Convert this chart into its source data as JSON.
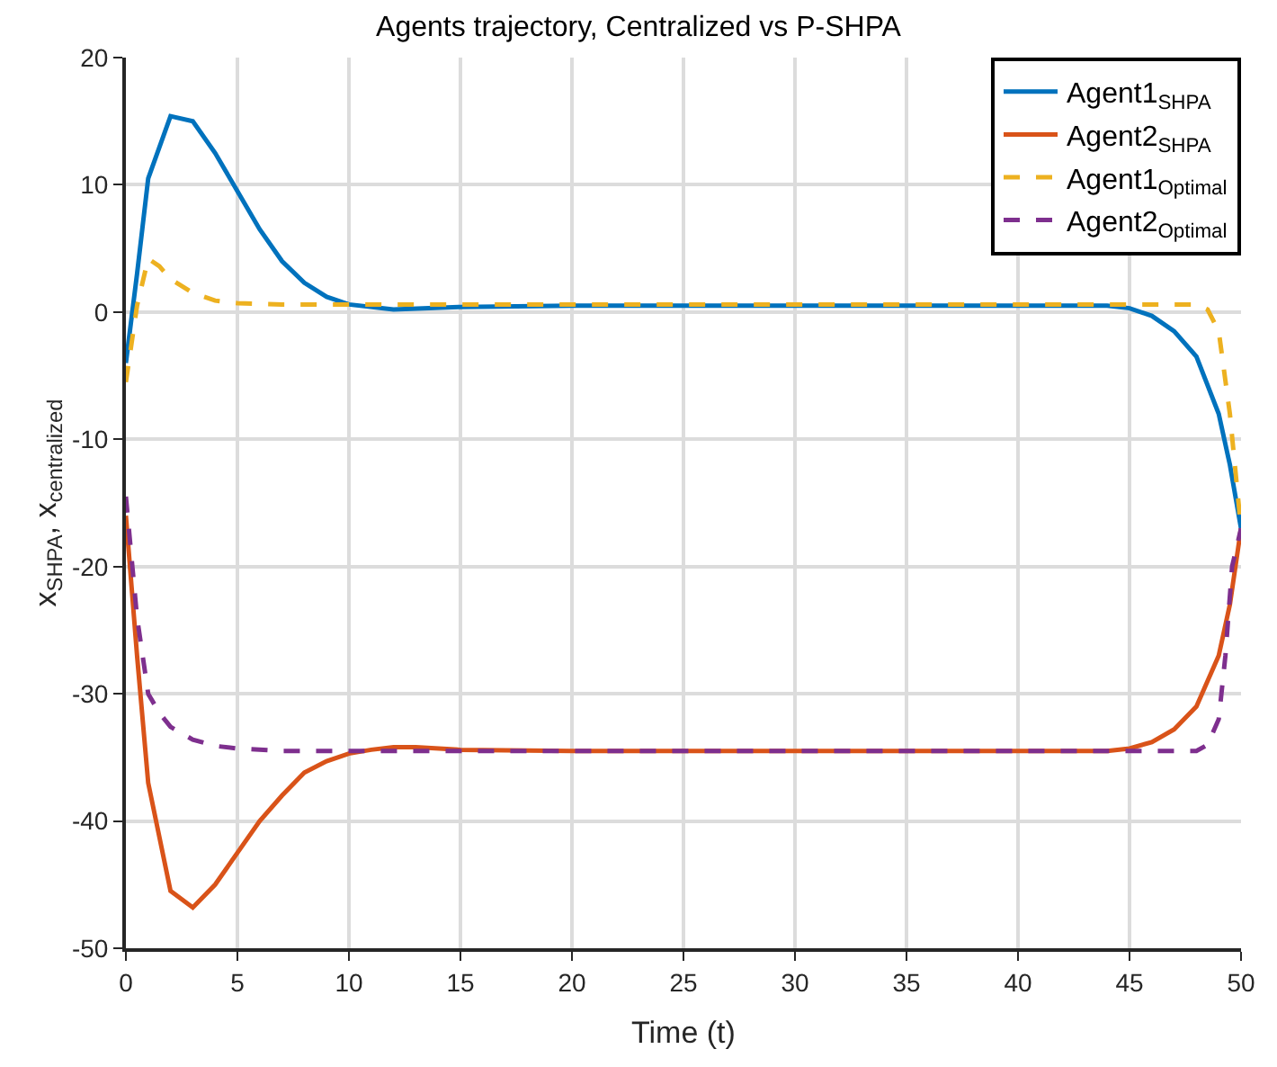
{
  "chart_data": {
    "type": "line",
    "title": "Agents trajectory, Centralized vs P-SHPA",
    "xlabel": "Time (t)",
    "ylabel": "x$_{SHPA}$, x$_{centralized}$",
    "xlim": [
      0,
      50
    ],
    "xticks": [
      0,
      5,
      10,
      15,
      20,
      25,
      30,
      35,
      40,
      45,
      50
    ],
    "ylim": [
      -50,
      20
    ],
    "yticks": [
      -50,
      -40,
      -30,
      -20,
      -10,
      0,
      10,
      20
    ],
    "grid": true,
    "legend": "top right",
    "series": [
      {
        "name": "Agent1$_{SHPA}$",
        "color": "#0072bd",
        "line_style": "solid",
        "x": [
          0,
          0.5,
          1,
          2,
          3,
          4,
          5,
          6,
          7,
          8,
          9,
          10,
          12,
          15,
          20,
          44,
          45,
          46,
          47,
          48,
          49,
          49.5,
          50
        ],
        "values": [
          -4,
          3,
          10.5,
          15.4,
          15,
          12.5,
          9.5,
          6.5,
          4,
          2.3,
          1.2,
          0.6,
          0.2,
          0.4,
          0.5,
          0.5,
          0.3,
          -0.3,
          -1.5,
          -3.5,
          -8,
          -12,
          -17
        ]
      },
      {
        "name": "Agent2$_{SHPA}$",
        "color": "#d95319",
        "line_style": "solid",
        "x": [
          0,
          0.5,
          1,
          2,
          3,
          4,
          5,
          6,
          7,
          8,
          9,
          10,
          11,
          12,
          13,
          15,
          20,
          44,
          45,
          46,
          47,
          48,
          49,
          49.5,
          50
        ],
        "values": [
          -16,
          -27,
          -37,
          -45.5,
          -46.8,
          -45,
          -42.5,
          -40,
          -38,
          -36.2,
          -35.3,
          -34.7,
          -34.4,
          -34.2,
          -34.2,
          -34.4,
          -34.5,
          -34.5,
          -34.3,
          -33.8,
          -32.8,
          -31,
          -27,
          -23,
          -17
        ]
      },
      {
        "name": "Agent1$_{Optimal}$",
        "color": "#edb120",
        "line_style": "dashed",
        "x": [
          0,
          0.5,
          1,
          1.5,
          2,
          3,
          4,
          5,
          7,
          10,
          48,
          48.5,
          49,
          49.5,
          50
        ],
        "values": [
          -5.5,
          0.5,
          4.2,
          3.6,
          2.6,
          1.5,
          0.9,
          0.7,
          0.6,
          0.6,
          0.6,
          0.2,
          -1.5,
          -8,
          -17
        ]
      },
      {
        "name": "Agent2$_{Optimal}$",
        "color": "#7e2f8e",
        "line_style": "dashed",
        "x": [
          0,
          0.5,
          1,
          1.5,
          2,
          3,
          4,
          5,
          7,
          48,
          48.5,
          49,
          49.3,
          49.6,
          50
        ],
        "values": [
          -14.5,
          -24,
          -30,
          -31.5,
          -32.6,
          -33.6,
          -34.1,
          -34.3,
          -34.5,
          -34.5,
          -34,
          -32,
          -27,
          -20,
          -17
        ]
      }
    ]
  }
}
